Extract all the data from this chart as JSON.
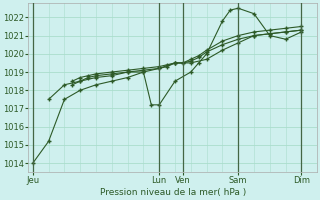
{
  "title": "Pression niveau de la mer( hPa )",
  "bg_color": "#cff0ee",
  "grid_major_color": "#aaddcc",
  "grid_minor_color": "#cce8e0",
  "line_color": "#2d5a27",
  "ylim": [
    1013.5,
    1022.8
  ],
  "yticks": [
    1014,
    1015,
    1016,
    1017,
    1018,
    1019,
    1020,
    1021,
    1022
  ],
  "x_day_labels": [
    {
      "label": "Jeu",
      "x": 0
    },
    {
      "label": "Lun",
      "x": 8
    },
    {
      "label": "Ven",
      "x": 9.5
    },
    {
      "label": "Sam",
      "x": 13
    },
    {
      "label": "Dim",
      "x": 17
    }
  ],
  "x_day_lines": [
    0,
    8,
    9.5,
    13,
    17
  ],
  "xlim": [
    -0.3,
    18.0
  ],
  "num_minor_x": 18,
  "series": [
    {
      "x": [
        0,
        1,
        2,
        3,
        4,
        5,
        6,
        7,
        8,
        9,
        10,
        11,
        12,
        13,
        14,
        15,
        16,
        17
      ],
      "y": [
        1014.0,
        1015.2,
        1017.5,
        1018.0,
        1018.3,
        1018.5,
        1018.7,
        1019.0,
        1019.2,
        1019.5,
        1019.5,
        1019.7,
        1020.2,
        1020.6,
        1021.0,
        1021.1,
        1021.2,
        1021.3
      ]
    },
    {
      "x": [
        1,
        2,
        3,
        4,
        5,
        6,
        7,
        7.5,
        8,
        9,
        10,
        10.5,
        11,
        12,
        12.5,
        13,
        14,
        15,
        16,
        17
      ],
      "y": [
        1017.5,
        1018.3,
        1018.5,
        1018.7,
        1018.8,
        1019.0,
        1019.0,
        1017.2,
        1017.2,
        1018.5,
        1019.0,
        1019.5,
        1020.0,
        1021.8,
        1022.4,
        1022.5,
        1022.2,
        1021.0,
        1020.8,
        1021.2
      ]
    },
    {
      "x": [
        2.5,
        3,
        3.5,
        4,
        5,
        6,
        7,
        8,
        8.5,
        9,
        9.5,
        10,
        10.5,
        11,
        12,
        13,
        14,
        15,
        16,
        17
      ],
      "y": [
        1018.3,
        1018.5,
        1018.7,
        1018.8,
        1018.9,
        1019.0,
        1019.1,
        1019.2,
        1019.3,
        1019.5,
        1019.5,
        1019.6,
        1019.8,
        1020.1,
        1020.5,
        1020.8,
        1021.0,
        1021.1,
        1021.2,
        1021.3
      ]
    },
    {
      "x": [
        2.5,
        3,
        3.5,
        4,
        5,
        6,
        7,
        8,
        8.5,
        9,
        9.5,
        10,
        10.5,
        11,
        12,
        13,
        14,
        15,
        16,
        17
      ],
      "y": [
        1018.5,
        1018.7,
        1018.8,
        1018.9,
        1019.0,
        1019.1,
        1019.2,
        1019.3,
        1019.4,
        1019.5,
        1019.5,
        1019.7,
        1019.9,
        1020.2,
        1020.7,
        1021.0,
        1021.2,
        1021.3,
        1021.4,
        1021.5
      ]
    }
  ]
}
